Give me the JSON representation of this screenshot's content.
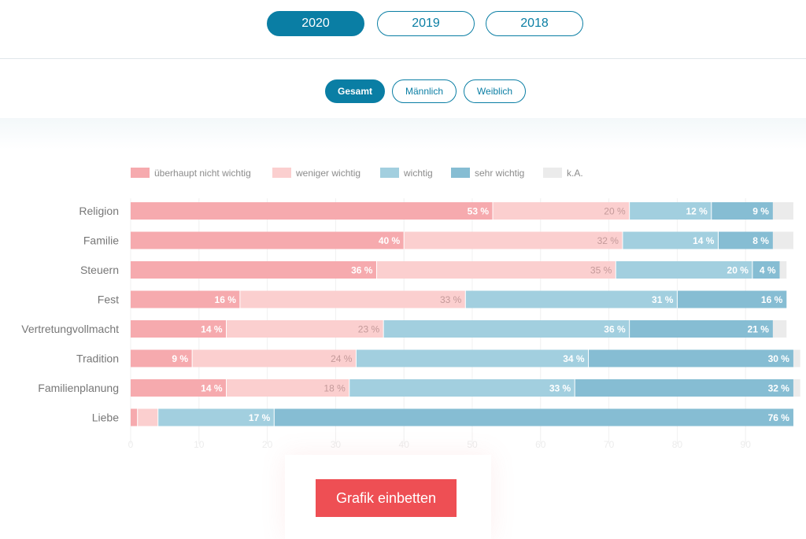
{
  "years": [
    "2020",
    "2019",
    "2018"
  ],
  "active_year": "2020",
  "gender_filters": [
    "Gesamt",
    "Männlich",
    "Weiblich"
  ],
  "active_gender": "Gesamt",
  "embed_button_label": "Grafik einbetten",
  "colors": {
    "accent": "#0a7ea4",
    "embed": "#ee4f54",
    "ueberhaupt_nicht_wichtig": "#f6aaae",
    "weniger_wichtig": "#fbcfcf",
    "wichtig": "#a2cfdf",
    "sehr_wichtig": "#86bdd3",
    "ka": "#ebebeb"
  },
  "chart_data": {
    "type": "bar",
    "orientation": "horizontal",
    "stacked": true,
    "categories": [
      "Religion",
      "Familie",
      "Steuern",
      "Fest",
      "Vertretungvollmacht",
      "Tradition",
      "Familienplanung",
      "Liebe"
    ],
    "series": [
      {
        "name": "überhaupt nicht wichtig",
        "color": "#f6aaae",
        "values": [
          53,
          40,
          36,
          16,
          14,
          9,
          14,
          1
        ]
      },
      {
        "name": "weniger wichtig",
        "color": "#fbcfcf",
        "values": [
          20,
          32,
          35,
          33,
          23,
          24,
          18,
          3
        ]
      },
      {
        "name": "wichtig",
        "color": "#a2cfdf",
        "values": [
          12,
          14,
          20,
          31,
          36,
          34,
          33,
          17
        ]
      },
      {
        "name": "sehr wichtig",
        "color": "#86bdd3",
        "values": [
          9,
          8,
          4,
          16,
          21,
          30,
          32,
          76
        ]
      },
      {
        "name": "k.A.",
        "color": "#ebebeb",
        "values": [
          3,
          3,
          1,
          0,
          2,
          1,
          1,
          0
        ]
      }
    ],
    "labels_shown": [
      [
        "53 %",
        "20 %",
        "12 %",
        "9 %",
        ""
      ],
      [
        "40 %",
        "32 %",
        "14 %",
        "8 %",
        ""
      ],
      [
        "36 %",
        "35 %",
        "20 %",
        "4 %",
        ""
      ],
      [
        "16 %",
        "33 %",
        "31 %",
        "16 %",
        ""
      ],
      [
        "14 %",
        "23 %",
        "36 %",
        "21 %",
        ""
      ],
      [
        "9 %",
        "24 %",
        "34 %",
        "30 %",
        ""
      ],
      [
        "14 %",
        "18 %",
        "33 %",
        "32 %",
        ""
      ],
      [
        "",
        "",
        "17 %",
        "76 %",
        ""
      ]
    ],
    "xticks": [
      0,
      10,
      20,
      30,
      40,
      50,
      60,
      70,
      80,
      90
    ],
    "xlim": [
      0,
      97
    ],
    "legend_position": "top-left",
    "grid": true
  }
}
